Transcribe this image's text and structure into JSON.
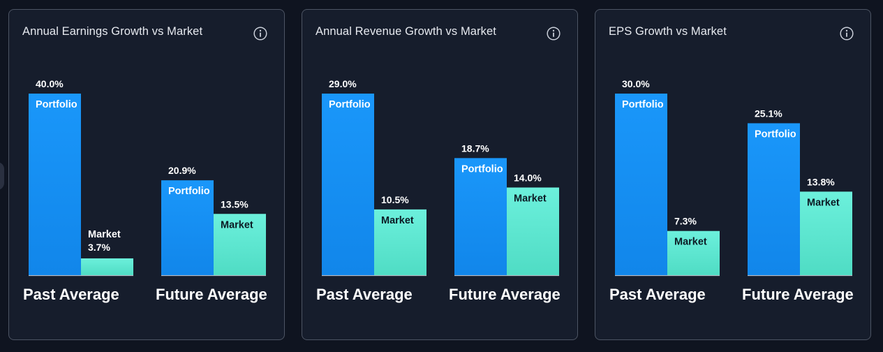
{
  "colors": {
    "portfolio": "#1a94f5",
    "market": "#63ead6",
    "background": "#0f1420",
    "card": "#161d2c",
    "card_border": "#4d5564"
  },
  "icons": {
    "info": "info-circle-icon"
  },
  "chart_data": [
    {
      "type": "bar",
      "title": "Annual Earnings Growth vs Market",
      "categories": [
        "Past Average",
        "Future Average"
      ],
      "series": [
        {
          "name": "Portfolio",
          "values": [
            40.0,
            20.9
          ],
          "labels": [
            "40.0%",
            "20.9%"
          ]
        },
        {
          "name": "Market",
          "values": [
            3.7,
            13.5
          ],
          "labels": [
            "3.7%",
            "13.5%"
          ]
        }
      ],
      "ylim": [
        0,
        40
      ]
    },
    {
      "type": "bar",
      "title": "Annual Revenue Growth vs Market",
      "categories": [
        "Past Average",
        "Future Average"
      ],
      "series": [
        {
          "name": "Portfolio",
          "values": [
            29.0,
            18.7
          ],
          "labels": [
            "29.0%",
            "18.7%"
          ]
        },
        {
          "name": "Market",
          "values": [
            10.5,
            14.0
          ],
          "labels": [
            "10.5%",
            "14.0%"
          ]
        }
      ],
      "ylim": [
        0,
        29
      ]
    },
    {
      "type": "bar",
      "title": "EPS Growth vs Market",
      "categories": [
        "Past Average",
        "Future Average"
      ],
      "series": [
        {
          "name": "Portfolio",
          "values": [
            30.0,
            25.1
          ],
          "labels": [
            "30.0%",
            "25.1%"
          ]
        },
        {
          "name": "Market",
          "values": [
            7.3,
            13.8
          ],
          "labels": [
            "7.3%",
            "13.8%"
          ]
        }
      ],
      "ylim": [
        0,
        30
      ]
    }
  ]
}
